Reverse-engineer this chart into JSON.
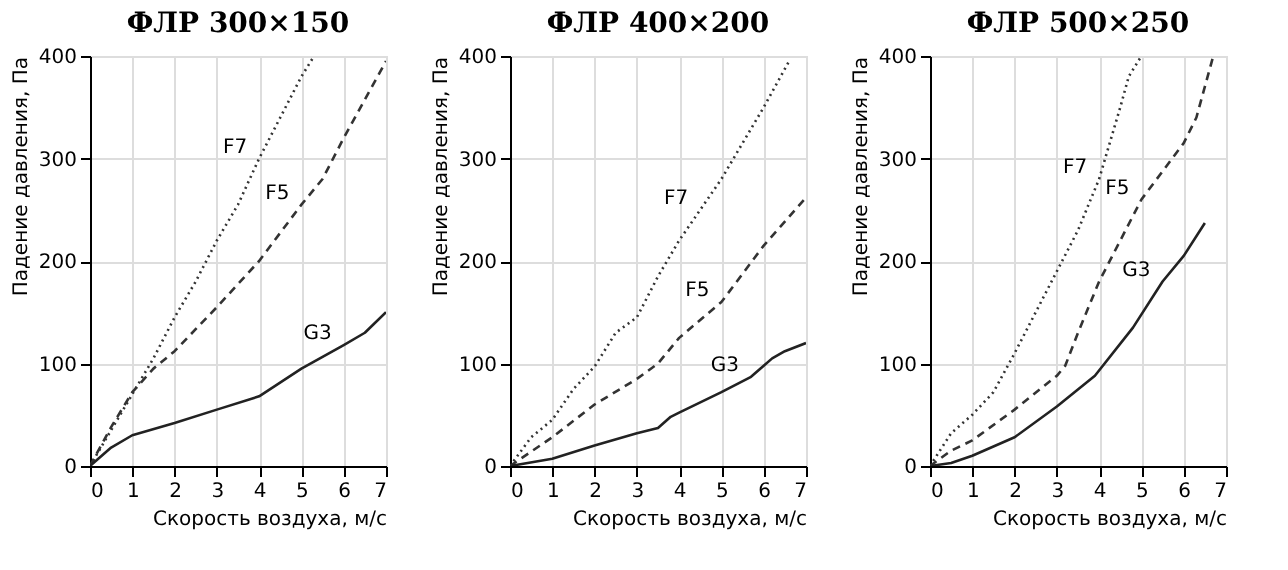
{
  "chart_data": [
    {
      "type": "line",
      "title": "ФЛР 300×150",
      "xlabel": "Скорость воздуха, м/с",
      "ylabel": "Падение давления, Па",
      "xlim": [
        0,
        7
      ],
      "xticks": [
        0,
        1,
        2,
        3,
        4,
        5,
        6,
        7
      ],
      "ylim": [
        0,
        400
      ],
      "yticks": [
        0,
        100,
        200,
        300,
        400
      ],
      "grid": true,
      "legend": false,
      "series": [
        {
          "name": "F7",
          "color": "#333333",
          "line_style": "dotted",
          "x": [
            0,
            0.5,
            1,
            1.5,
            2,
            2.5,
            3,
            3.5,
            4,
            4.5,
            5,
            5.3
          ],
          "values": [
            0,
            35,
            70,
            105,
            145,
            180,
            220,
            255,
            300,
            340,
            380,
            400
          ]
        },
        {
          "name": "F5",
          "color": "#333333",
          "line_style": "dashed",
          "x": [
            0,
            0.5,
            1,
            1.5,
            2,
            3,
            4,
            5,
            5.5,
            6,
            7
          ],
          "values": [
            0,
            38,
            72,
            95,
            112,
            155,
            200,
            255,
            280,
            320,
            395
          ]
        },
        {
          "name": "G3",
          "color": "#222222",
          "line_style": "solid",
          "x": [
            0,
            0.5,
            1,
            2,
            3,
            4,
            5,
            6,
            6.5,
            7
          ],
          "values": [
            0,
            18,
            30,
            42,
            55,
            68,
            95,
            118,
            130,
            150
          ]
        }
      ]
    },
    {
      "type": "line",
      "title": "ФЛР 400×200",
      "xlabel": "Скорость воздуха, м/с",
      "ylabel": "Падение давления, Па",
      "xlim": [
        0,
        7
      ],
      "xticks": [
        0,
        1,
        2,
        3,
        4,
        5,
        6,
        7
      ],
      "ylim": [
        0,
        400
      ],
      "yticks": [
        0,
        100,
        200,
        300,
        400
      ],
      "grid": true,
      "legend": false,
      "series": [
        {
          "name": "F7",
          "color": "#333333",
          "line_style": "dotted",
          "x": [
            0,
            0.5,
            1,
            1.5,
            2,
            2.5,
            3,
            3.5,
            4,
            4.5,
            5,
            6,
            6.6
          ],
          "values": [
            0,
            28,
            45,
            75,
            97,
            130,
            145,
            185,
            220,
            250,
            280,
            350,
            395
          ]
        },
        {
          "name": "F5",
          "color": "#333333",
          "line_style": "dashed",
          "x": [
            0,
            1,
            2,
            3,
            3.5,
            4,
            5,
            6,
            7
          ],
          "values": [
            0,
            28,
            60,
            85,
            100,
            125,
            160,
            215,
            262
          ]
        },
        {
          "name": "G3",
          "color": "#222222",
          "line_style": "solid",
          "x": [
            0,
            1,
            2,
            3,
            3.5,
            3.8,
            4,
            5,
            5.7,
            6.2,
            6.5,
            7
          ],
          "values": [
            0,
            7,
            20,
            32,
            37,
            48,
            52,
            72,
            87,
            105,
            112,
            120
          ]
        }
      ]
    },
    {
      "type": "line",
      "title": "ФЛР 500×250",
      "xlabel": "Скорость воздуха, м/с",
      "ylabel": "Падение давления, Па",
      "xlim": [
        0,
        7
      ],
      "xticks": [
        0,
        1,
        2,
        3,
        4,
        5,
        6,
        7
      ],
      "ylim": [
        0,
        400
      ],
      "yticks": [
        0,
        100,
        200,
        300,
        400
      ],
      "grid": true,
      "legend": false,
      "series": [
        {
          "name": "F7",
          "color": "#333333",
          "line_style": "dotted",
          "x": [
            0,
            0.5,
            1,
            1.5,
            2,
            2.5,
            3,
            3.5,
            4,
            4.5,
            4.7,
            5
          ],
          "values": [
            0,
            32,
            50,
            72,
            110,
            150,
            190,
            230,
            280,
            350,
            380,
            400
          ]
        },
        {
          "name": "F5",
          "color": "#333333",
          "line_style": "dashed",
          "x": [
            0,
            0.5,
            1,
            2,
            3,
            3.2,
            3.5,
            4,
            5,
            6,
            6.3,
            6.7
          ],
          "values": [
            0,
            15,
            25,
            55,
            88,
            98,
            130,
            180,
            260,
            315,
            340,
            400
          ]
        },
        {
          "name": "G3",
          "color": "#222222",
          "line_style": "solid",
          "x": [
            0,
            0.5,
            1,
            2,
            3,
            3.9,
            4.8,
            5.5,
            6,
            6.5
          ],
          "values": [
            0,
            3,
            10,
            28,
            58,
            88,
            135,
            180,
            205,
            237
          ]
        }
      ]
    }
  ]
}
